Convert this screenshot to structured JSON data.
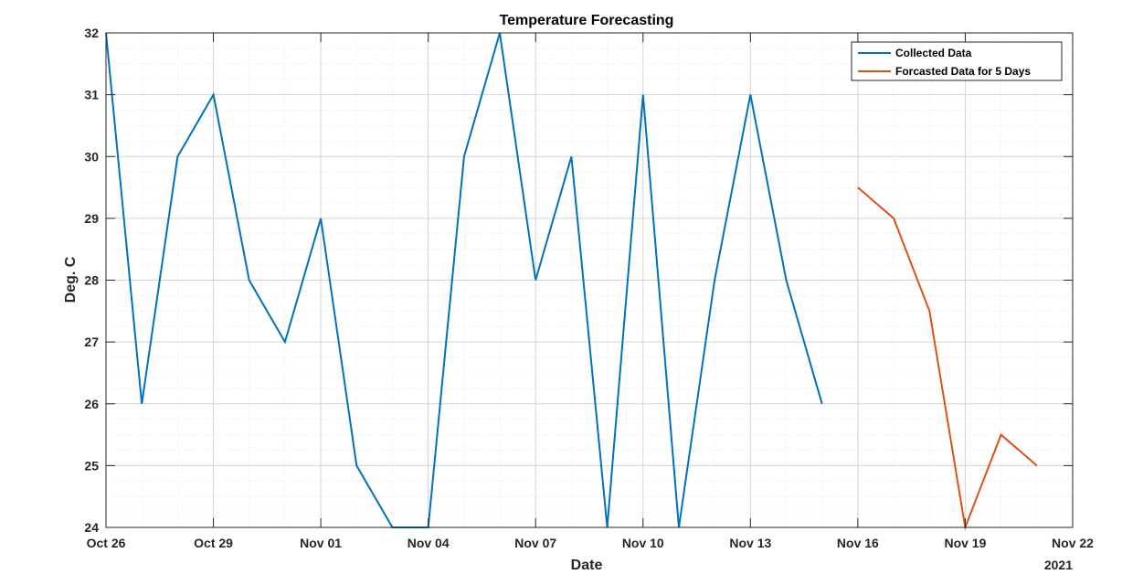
{
  "chart_data": {
    "type": "line",
    "title": "Temperature Forecasting",
    "xlabel": "Date",
    "ylabel": "Deg. C",
    "year_label": "2021",
    "ylim": [
      24,
      32
    ],
    "y_ticks": [
      24,
      25,
      26,
      27,
      28,
      29,
      30,
      31,
      32
    ],
    "xlim": [
      "2021-10-26",
      "2021-11-22"
    ],
    "x_ticks": [
      {
        "date": "2021-10-26",
        "label": "Oct 26"
      },
      {
        "date": "2021-10-29",
        "label": "Oct 29"
      },
      {
        "date": "2021-11-01",
        "label": "Nov 01"
      },
      {
        "date": "2021-11-04",
        "label": "Nov 04"
      },
      {
        "date": "2021-11-07",
        "label": "Nov 07"
      },
      {
        "date": "2021-11-10",
        "label": "Nov 10"
      },
      {
        "date": "2021-11-13",
        "label": "Nov 13"
      },
      {
        "date": "2021-11-16",
        "label": "Nov 16"
      },
      {
        "date": "2021-11-19",
        "label": "Nov 19"
      },
      {
        "date": "2021-11-22",
        "label": "Nov 22"
      }
    ],
    "grid": true,
    "minor_grid": true,
    "legend_position": "top-right",
    "series": [
      {
        "name": "Collected Data",
        "color": "#0072BD",
        "x": [
          "2021-10-26",
          "2021-10-27",
          "2021-10-28",
          "2021-10-29",
          "2021-10-30",
          "2021-10-31",
          "2021-11-01",
          "2021-11-02",
          "2021-11-03",
          "2021-11-04",
          "2021-11-05",
          "2021-11-06",
          "2021-11-07",
          "2021-11-08",
          "2021-11-09",
          "2021-11-10",
          "2021-11-11",
          "2021-11-12",
          "2021-11-13",
          "2021-11-14",
          "2021-11-15"
        ],
        "y": [
          32,
          26,
          30,
          31,
          28,
          27,
          29,
          25,
          24,
          24,
          30,
          32,
          28,
          30,
          24,
          31,
          24,
          28,
          31,
          28,
          26
        ]
      },
      {
        "name": "Forcasted Data for 5 Days",
        "color": "#D95319",
        "x": [
          "2021-11-16",
          "2021-11-17",
          "2021-11-18",
          "2021-11-19",
          "2021-11-20",
          "2021-11-21"
        ],
        "y": [
          29.5,
          29,
          27.5,
          24,
          25.5,
          25
        ]
      }
    ]
  }
}
